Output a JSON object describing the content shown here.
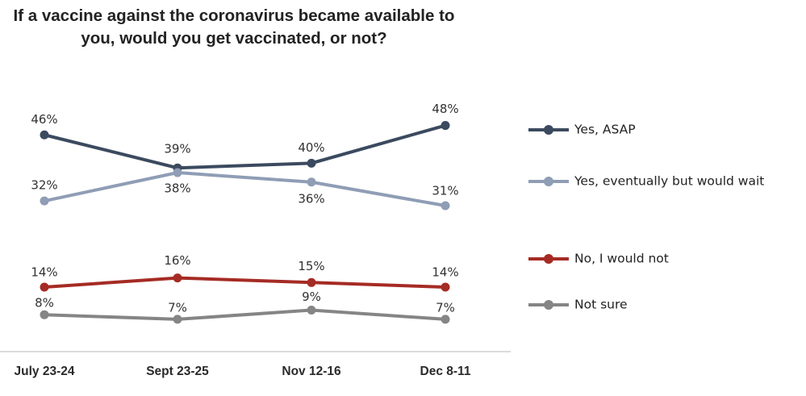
{
  "chart_data": {
    "type": "line",
    "title": "If a vaccine against the coronavirus became available to you, would you get vaccinated, or not?",
    "categories": [
      "July 23-24",
      "Sept 23-25",
      "Nov 12-16",
      "Dec 8-11"
    ],
    "series": [
      {
        "name": "Yes, ASAP",
        "values": [
          46,
          39,
          40,
          48
        ],
        "color": "#3b4a5f"
      },
      {
        "name": "Yes, eventually but would wait",
        "values": [
          32,
          38,
          36,
          31
        ],
        "color": "#8f9db5"
      },
      {
        "name": "No, I would not",
        "values": [
          14,
          16,
          15,
          14
        ],
        "color": "#a52b24"
      },
      {
        "name": "Not sure",
        "values": [
          8,
          7,
          9,
          7
        ],
        "color": "#858585"
      }
    ],
    "value_suffix": "%",
    "legend_position": "right",
    "grid": false
  }
}
